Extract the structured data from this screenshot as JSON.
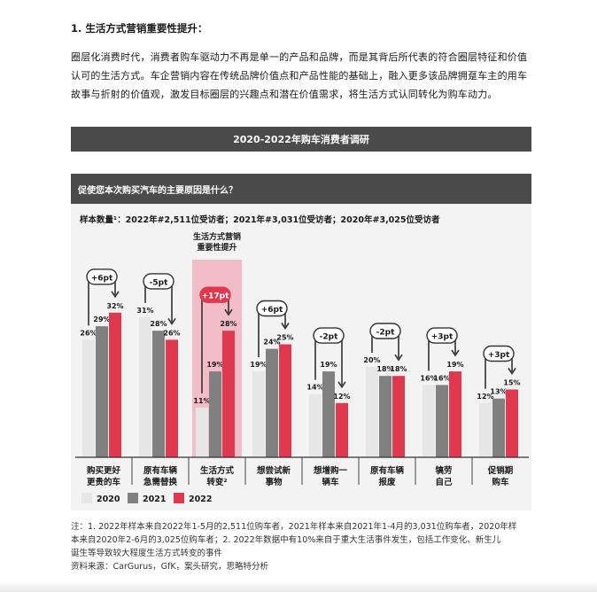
{
  "section_heading": "1. 生活方式营销重要性提升：",
  "paragraph": "圈层化消费时代，消费者购车驱动力不再是单一的产品和品牌，而是其背后所代表的符合圈层特征和价值认可的生活方式。车企营销内容在传统品牌价值点和产品性能的基础上，融入更多该品牌拥趸车主的用车故事与折射的价值观，激发目标圈层的兴趣点和潜在价值需求，将生活方式认同转化为购车动力。",
  "banner_title": "2020-2022年购车消费者调研",
  "question": "促使您本次购买汽车的主要原因是什么？",
  "sample_note": "样本数量¹：2022年#2,511位受访者；2021年#3,031位受访者；2020年#3,025位受访者",
  "highlight_label": "生活方式营销重要性提升",
  "colors": {
    "y2020": "#e6e6e6",
    "y2021": "#808080",
    "y2022": "#e0384f",
    "highlight": "#f2b3be",
    "badge": "#e0384f"
  },
  "chart_data": {
    "type": "bar",
    "title": "促使您本次购买汽车的主要原因是什么？",
    "categories": [
      "购买更好\n更贵的车",
      "原有车辆\n急需替换",
      "生活方式\n转变²",
      "想尝试新\n事物",
      "想增购一\n辆车",
      "原有车辆\n报废",
      "犒劳\n自己",
      "促销期\n购车"
    ],
    "series": [
      {
        "name": "2020",
        "values": [
          26,
          31,
          11,
          19,
          14,
          20,
          16,
          12
        ],
        "labels": [
          "26%",
          "31%",
          "11%",
          "19%",
          "14%",
          "20%",
          "16%",
          "12%"
        ]
      },
      {
        "name": "2021",
        "values": [
          29,
          28,
          19,
          24,
          19,
          18,
          16,
          13
        ],
        "labels": [
          "29%",
          "28%",
          "19%",
          "24%",
          "19%",
          "18%",
          "16%",
          "13%"
        ]
      },
      {
        "name": "2022",
        "values": [
          32,
          26,
          28,
          25,
          12,
          18,
          19,
          15
        ],
        "labels": [
          "32%",
          "26%",
          "28%",
          "25%",
          "12%",
          "18%",
          "19%",
          "15%"
        ]
      }
    ],
    "changes": [
      "+6pt",
      "-5pt",
      "+17pt",
      "+6pt",
      "-2pt",
      "-2pt",
      "+3pt",
      "+3pt"
    ],
    "highlight_category": "生活方式\n转变²",
    "ylim": [
      0,
      40
    ],
    "legend": [
      "2020",
      "2021",
      "2022"
    ]
  },
  "footnote_lines": [
    "注：1. 2022年样本来自2022年1-5月的2,511位购车者，2021年样本来自2021年1-4月的3,031位购车者，2020年样",
    "本来自2020年2-6月的3,025位购车者；2. 2022年数据中有10%来自于重大生活事件发生，包括工作变化、新生儿",
    "诞生等导致较大程度生活方式转变的事件",
    "资料来源：CarGurus，GfK，案头研究，思略特分析"
  ]
}
